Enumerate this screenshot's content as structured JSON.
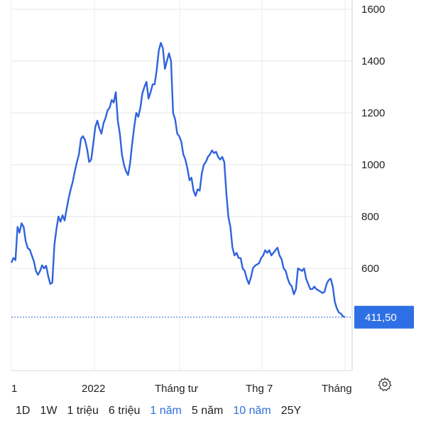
{
  "chart_data": {
    "type": "line",
    "x_tick_labels": [
      "1",
      "2022",
      "Tháng tư",
      "Thg 7",
      "Tháng"
    ],
    "y_ticks": [
      600,
      800,
      1000,
      1200,
      1400,
      1600
    ],
    "ylim": [
      230,
      1640
    ],
    "last_value_label": "411,50",
    "last_value": 411.5,
    "grid": true,
    "series_color": "#2f63dd",
    "series": [
      {
        "values": [
          622,
          640,
          632,
          760,
          738,
          774,
          760,
          705,
          678,
          672,
          650,
          628,
          590,
          575,
          590,
          612,
          600,
          610,
          570,
          540,
          545,
          690,
          750,
          800,
          780,
          805,
          785,
          830,
          870,
          905,
          935,
          975,
          1010,
          1040,
          1100,
          1110,
          1095,
          1060,
          1010,
          1020,
          1080,
          1145,
          1170,
          1140,
          1120,
          1160,
          1180,
          1210,
          1220,
          1250,
          1240,
          1280,
          1170,
          1120,
          1040,
          1000,
          975,
          960,
          1005,
          1080,
          1145,
          1200,
          1185,
          1220,
          1275,
          1300,
          1320,
          1255,
          1280,
          1310,
          1310,
          1365,
          1440,
          1470,
          1450,
          1370,
          1400,
          1430,
          1400,
          1200,
          1175,
          1120,
          1110,
          1090,
          1040,
          1020,
          985,
          940,
          950,
          900,
          880,
          905,
          900,
          965,
          1000,
          1010,
          1030,
          1040,
          1055,
          1045,
          1050,
          1030,
          1020,
          1030,
          1010,
          890,
          800,
          760,
          680,
          650,
          660,
          640,
          640,
          600,
          590,
          560,
          540,
          565,
          600,
          610,
          615,
          620,
          640,
          650,
          670,
          660,
          670,
          650,
          660,
          670,
          680,
          650,
          635,
          600,
          590,
          560,
          540,
          530,
          500,
          520,
          600,
          595,
          590,
          600,
          560,
          540,
          520,
          520,
          530,
          520,
          515,
          510,
          505,
          510,
          540,
          555,
          560,
          530,
          470,
          445,
          430,
          425,
          415,
          411.5
        ]
      }
    ]
  },
  "range_selector": {
    "items": [
      {
        "label": "1D",
        "active": false
      },
      {
        "label": "1W",
        "active": false
      },
      {
        "label": "1 triệu",
        "active": false
      },
      {
        "label": "6 triệu",
        "active": false
      },
      {
        "label": "1 năm",
        "active": true
      },
      {
        "label": "5 năm",
        "active": false
      },
      {
        "label": "10 năm",
        "active": true
      },
      {
        "label": "25Y",
        "active": false
      }
    ]
  },
  "settings": {
    "icon": "gear-icon"
  }
}
